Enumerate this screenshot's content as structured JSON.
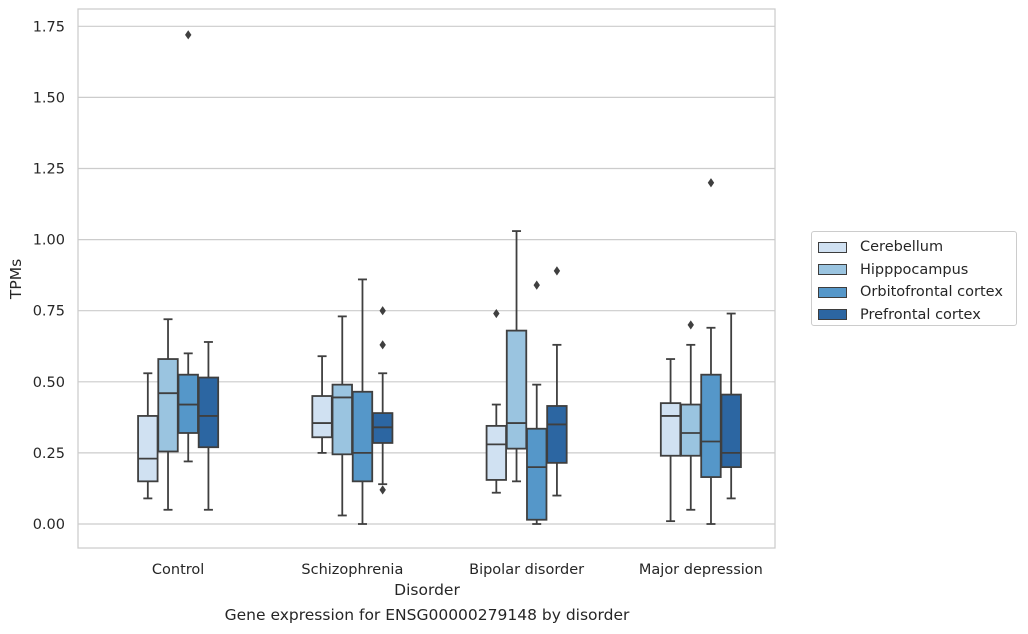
{
  "chart_data": {
    "type": "box",
    "title": "Gene expression for ENSG00000279148 by disorder",
    "xlabel": "Disorder",
    "ylabel": "TPMs",
    "ylim": [
      -0.085,
      1.81
    ],
    "yticks": [
      "0.00",
      "0.25",
      "0.50",
      "0.75",
      "1.00",
      "1.25",
      "1.50",
      "1.75"
    ],
    "categories": [
      "Control",
      "Schizophrenia",
      "Bipolar disorder",
      "Major depression"
    ],
    "grid": "horizontal",
    "legend_position": "right",
    "series": [
      {
        "name": "Cerebellum",
        "color": "#d0e1f2",
        "boxes": [
          {
            "whislo": 0.09,
            "q1": 0.15,
            "med": 0.23,
            "q3": 0.38,
            "whishi": 0.53,
            "fliers": []
          },
          {
            "whislo": 0.25,
            "q1": 0.305,
            "med": 0.355,
            "q3": 0.45,
            "whishi": 0.59,
            "fliers": []
          },
          {
            "whislo": 0.11,
            "q1": 0.155,
            "med": 0.28,
            "q3": 0.345,
            "whishi": 0.42,
            "fliers": [
              0.74
            ]
          },
          {
            "whislo": 0.01,
            "q1": 0.24,
            "med": 0.38,
            "q3": 0.425,
            "whishi": 0.58,
            "fliers": []
          }
        ]
      },
      {
        "name": "Hipppocampus",
        "color": "#9ac4e0",
        "boxes": [
          {
            "whislo": 0.05,
            "q1": 0.255,
            "med": 0.46,
            "q3": 0.58,
            "whishi": 0.72,
            "fliers": []
          },
          {
            "whislo": 0.03,
            "q1": 0.245,
            "med": 0.445,
            "q3": 0.49,
            "whishi": 0.73,
            "fliers": []
          },
          {
            "whislo": 0.15,
            "q1": 0.265,
            "med": 0.355,
            "q3": 0.68,
            "whishi": 1.03,
            "fliers": []
          },
          {
            "whislo": 0.05,
            "q1": 0.24,
            "med": 0.32,
            "q3": 0.42,
            "whishi": 0.63,
            "fliers": [
              0.7
            ]
          }
        ]
      },
      {
        "name": "Orbitofrontal cortex",
        "color": "#5597c9",
        "boxes": [
          {
            "whislo": 0.22,
            "q1": 0.32,
            "med": 0.42,
            "q3": 0.525,
            "whishi": 0.6,
            "fliers": [
              1.72
            ]
          },
          {
            "whislo": 0.0,
            "q1": 0.15,
            "med": 0.25,
            "q3": 0.465,
            "whishi": 0.86,
            "fliers": []
          },
          {
            "whislo": 0.0,
            "q1": 0.015,
            "med": 0.2,
            "q3": 0.335,
            "whishi": 0.49,
            "fliers": [
              0.84
            ]
          },
          {
            "whislo": 0.0,
            "q1": 0.165,
            "med": 0.29,
            "q3": 0.525,
            "whishi": 0.69,
            "fliers": [
              1.2
            ]
          }
        ]
      },
      {
        "name": "Prefrontal cortex",
        "color": "#2c66a2",
        "boxes": [
          {
            "whislo": 0.05,
            "q1": 0.27,
            "med": 0.38,
            "q3": 0.515,
            "whishi": 0.64,
            "fliers": []
          },
          {
            "whislo": 0.14,
            "q1": 0.285,
            "med": 0.34,
            "q3": 0.39,
            "whishi": 0.53,
            "fliers": [
              0.12,
              0.63,
              0.75
            ]
          },
          {
            "whislo": 0.1,
            "q1": 0.215,
            "med": 0.35,
            "q3": 0.415,
            "whishi": 0.63,
            "fliers": [
              0.89
            ]
          },
          {
            "whislo": 0.09,
            "q1": 0.2,
            "med": 0.25,
            "q3": 0.455,
            "whishi": 0.74,
            "fliers": []
          }
        ]
      }
    ]
  }
}
